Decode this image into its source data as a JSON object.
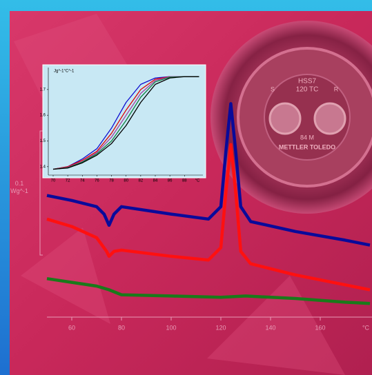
{
  "chart_data": [
    {
      "type": "line",
      "y_label": "0.1\nWg^-1",
      "x_unit": "°C",
      "xlim": [
        50,
        180
      ],
      "xticks": [
        60,
        80,
        100,
        120,
        140,
        160
      ],
      "ylim": [
        0,
        0.2
      ],
      "series": [
        {
          "color": "#0a0a9a",
          "x": [
            50,
            60,
            70,
            73,
            75,
            77,
            80,
            100,
            115,
            120,
            122,
            124,
            126,
            128,
            132,
            150,
            170,
            180
          ],
          "values": [
            0.098,
            0.094,
            0.089,
            0.083,
            0.074,
            0.083,
            0.089,
            0.083,
            0.079,
            0.089,
            0.133,
            0.172,
            0.133,
            0.089,
            0.077,
            0.069,
            0.062,
            0.058
          ]
        },
        {
          "color": "#ff1010",
          "x": [
            50,
            60,
            70,
            74,
            75,
            77,
            80,
            100,
            115,
            120,
            122,
            124,
            126,
            128,
            132,
            150,
            170,
            180
          ],
          "values": [
            0.079,
            0.073,
            0.064,
            0.053,
            0.049,
            0.053,
            0.054,
            0.049,
            0.046,
            0.056,
            0.1,
            0.139,
            0.1,
            0.053,
            0.043,
            0.034,
            0.026,
            0.022
          ]
        },
        {
          "color": "#1a7a1a",
          "x": [
            50,
            60,
            70,
            75,
            80,
            100,
            120,
            130,
            150,
            170,
            180
          ],
          "values": [
            0.031,
            0.028,
            0.025,
            0.022,
            0.018,
            0.017,
            0.016,
            0.017,
            0.015,
            0.012,
            0.011
          ]
        }
      ]
    },
    {
      "type": "line",
      "y_label": "Jg^-1°C^-1",
      "x_unit": "°C",
      "xlim": [
        70,
        91
      ],
      "xticks": [
        70,
        72,
        74,
        76,
        78,
        80,
        82,
        84,
        86,
        88
      ],
      "ylim": [
        1.37,
        1.78
      ],
      "yticks": [
        1.4,
        1.5,
        1.6,
        1.7
      ],
      "series": [
        {
          "color": "#1010d0",
          "x": [
            70,
            72,
            74,
            76,
            78,
            80,
            82,
            84,
            86,
            88,
            90
          ],
          "values": [
            1.39,
            1.4,
            1.43,
            1.47,
            1.55,
            1.65,
            1.72,
            1.745,
            1.75,
            1.75,
            1.75
          ]
        },
        {
          "color": "#e00000",
          "x": [
            70,
            72,
            74,
            76,
            78,
            80,
            82,
            84,
            86,
            88,
            90
          ],
          "values": [
            1.39,
            1.4,
            1.425,
            1.46,
            1.53,
            1.62,
            1.7,
            1.74,
            1.75,
            1.75,
            1.75
          ]
        },
        {
          "color": "#a040a0",
          "x": [
            70,
            72,
            74,
            76,
            78,
            80,
            82,
            84,
            86,
            88,
            90
          ],
          "values": [
            1.39,
            1.398,
            1.42,
            1.455,
            1.515,
            1.6,
            1.685,
            1.735,
            1.75,
            1.75,
            1.75
          ]
        },
        {
          "color": "#108040",
          "x": [
            70,
            72,
            74,
            76,
            78,
            80,
            82,
            84,
            86,
            88,
            90
          ],
          "values": [
            1.39,
            1.396,
            1.418,
            1.45,
            1.5,
            1.58,
            1.67,
            1.73,
            1.748,
            1.75,
            1.75
          ]
        },
        {
          "color": "#000000",
          "x": [
            70,
            72,
            74,
            76,
            78,
            80,
            82,
            84,
            86,
            88,
            90
          ],
          "values": [
            1.39,
            1.395,
            1.415,
            1.445,
            1.49,
            1.56,
            1.65,
            1.72,
            1.745,
            1.75,
            1.75
          ]
        }
      ]
    }
  ],
  "decoration": {
    "model": "HSS7",
    "rating": "120 TC",
    "left": "S",
    "right": "R",
    "code": "84 M",
    "brand": "METTLER TOLEDO"
  }
}
